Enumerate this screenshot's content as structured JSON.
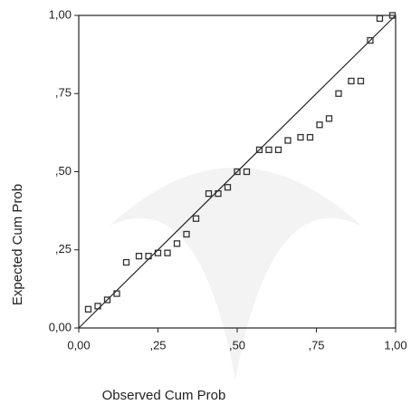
{
  "chart_data": {
    "type": "scatter",
    "x_label": "Observed Cum Prob",
    "y_label": "Expected Cum Prob",
    "x": [
      0.03,
      0.06,
      0.09,
      0.12,
      0.15,
      0.19,
      0.22,
      0.25,
      0.28,
      0.31,
      0.34,
      0.37,
      0.41,
      0.44,
      0.47,
      0.5,
      0.53,
      0.57,
      0.6,
      0.63,
      0.66,
      0.7,
      0.73,
      0.76,
      0.79,
      0.82,
      0.86,
      0.89,
      0.92,
      0.95,
      0.99
    ],
    "values": [
      0.06,
      0.07,
      0.09,
      0.11,
      0.21,
      0.23,
      0.23,
      0.24,
      0.24,
      0.27,
      0.3,
      0.35,
      0.43,
      0.43,
      0.45,
      0.5,
      0.5,
      0.57,
      0.57,
      0.57,
      0.6,
      0.61,
      0.61,
      0.65,
      0.67,
      0.75,
      0.79,
      0.79,
      0.92,
      0.99,
      1.0
    ],
    "color": "#333333",
    "xlim": [
      0,
      1
    ],
    "ylim": [
      0,
      1
    ],
    "xticks": [
      {
        "value": 0,
        "label": "0,00"
      },
      {
        "value": 0.25,
        "label": ",25"
      },
      {
        "value": 0.5,
        "label": ",50"
      },
      {
        "value": 0.75,
        "label": ",75"
      },
      {
        "value": 1,
        "label": "1,00"
      }
    ],
    "yticks": [
      {
        "value": 0,
        "label": "0,00"
      },
      {
        "value": 0.25,
        "label": ",25"
      },
      {
        "value": 0.5,
        "label": ",50"
      },
      {
        "value": 0.75,
        "label": ",75"
      },
      {
        "value": 1,
        "label": "1,00"
      }
    ]
  }
}
